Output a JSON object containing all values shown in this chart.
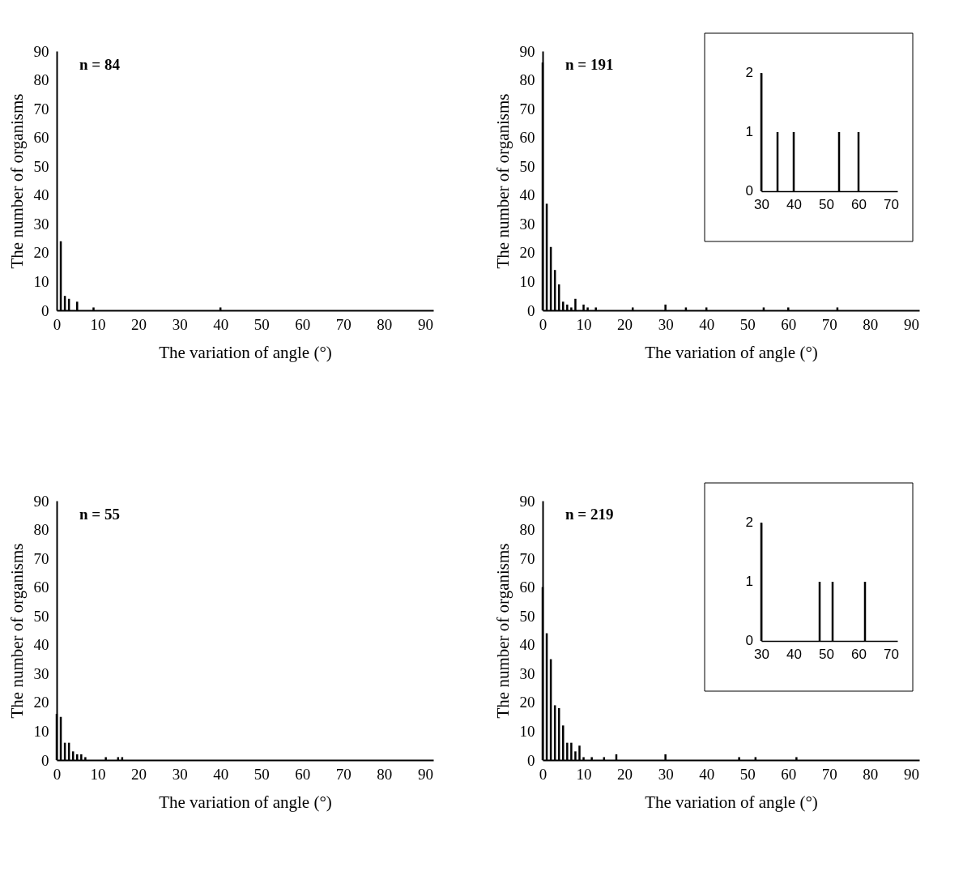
{
  "chart_data": [
    {
      "type": "bar",
      "xlabel": "The variation of angle (°)",
      "ylabel": "The number of organisms",
      "annotations": [
        "n = 84"
      ],
      "color": "#000000",
      "x": [
        1,
        2,
        3,
        5,
        9,
        40
      ],
      "values": [
        24,
        5,
        4,
        3,
        1,
        1
      ],
      "xlim": [
        0,
        92
      ],
      "ylim": [
        0,
        90
      ],
      "xticks": [
        0,
        10,
        20,
        30,
        40,
        50,
        60,
        70,
        80,
        90
      ],
      "yticks": [
        0,
        10,
        20,
        30,
        40,
        50,
        60,
        70,
        80,
        90
      ],
      "grid": false
    },
    {
      "type": "bar",
      "xlabel": "The variation of angle (°)",
      "ylabel": "The number of organisms",
      "annotations": [
        "n = 191"
      ],
      "color": "#000000",
      "x": [
        0,
        1,
        2,
        3,
        4,
        5,
        6,
        7,
        8,
        10,
        11,
        13,
        22,
        30,
        35,
        40,
        54,
        60,
        72
      ],
      "values": [
        86,
        37,
        22,
        14,
        9,
        3,
        2,
        1,
        4,
        2,
        1,
        1,
        1,
        2,
        1,
        1,
        1,
        1,
        1
      ],
      "xlim": [
        0,
        92
      ],
      "ylim": [
        0,
        90
      ],
      "xticks": [
        0,
        10,
        20,
        30,
        40,
        50,
        60,
        70,
        80,
        90
      ],
      "yticks": [
        0,
        10,
        20,
        30,
        40,
        50,
        60,
        70,
        80,
        90
      ],
      "grid": false
    },
    {
      "type": "bar",
      "color": "#000000",
      "x": [
        30,
        35,
        40,
        54,
        60
      ],
      "values": [
        2,
        1,
        1,
        1,
        1
      ],
      "xlim": [
        30,
        72
      ],
      "ylim": [
        0,
        2
      ],
      "xticks": [
        30,
        40,
        50,
        60,
        70
      ],
      "yticks": [
        0,
        1,
        2
      ],
      "grid": false
    },
    {
      "type": "bar",
      "xlabel": "The variation of angle (°)",
      "ylabel": "The number of organisms",
      "annotations": [
        "n = 55"
      ],
      "color": "#000000",
      "x": [
        0,
        1,
        2,
        3,
        4,
        5,
        6,
        7,
        12,
        15,
        16
      ],
      "values": [
        16,
        15,
        6,
        6,
        3,
        2,
        2,
        1,
        1,
        1,
        1
      ],
      "xlim": [
        0,
        92
      ],
      "ylim": [
        0,
        90
      ],
      "xticks": [
        0,
        10,
        20,
        30,
        40,
        50,
        60,
        70,
        80,
        90
      ],
      "yticks": [
        0,
        10,
        20,
        30,
        40,
        50,
        60,
        70,
        80,
        90
      ],
      "grid": false
    },
    {
      "type": "bar",
      "xlabel": "The variation of angle (°)",
      "ylabel": "The number of organisms",
      "annotations": [
        "n = 219"
      ],
      "color": "#000000",
      "x": [
        0,
        1,
        2,
        3,
        4,
        5,
        6,
        7,
        8,
        9,
        10,
        12,
        15,
        18,
        30,
        48,
        52,
        62
      ],
      "values": [
        60,
        44,
        35,
        19,
        18,
        12,
        6,
        6,
        3,
        5,
        1,
        1,
        1,
        2,
        2,
        1,
        1,
        1
      ],
      "xlim": [
        0,
        92
      ],
      "ylim": [
        0,
        90
      ],
      "xticks": [
        0,
        10,
        20,
        30,
        40,
        50,
        60,
        70,
        80,
        90
      ],
      "yticks": [
        0,
        10,
        20,
        30,
        40,
        50,
        60,
        70,
        80,
        90
      ],
      "grid": false
    },
    {
      "type": "bar",
      "color": "#000000",
      "x": [
        30,
        48,
        52,
        62
      ],
      "values": [
        2,
        1,
        1,
        1
      ],
      "xlim": [
        30,
        72
      ],
      "ylim": [
        0,
        2
      ],
      "xticks": [
        30,
        40,
        50,
        60,
        70
      ],
      "yticks": [
        0,
        1,
        2
      ],
      "grid": false
    }
  ]
}
